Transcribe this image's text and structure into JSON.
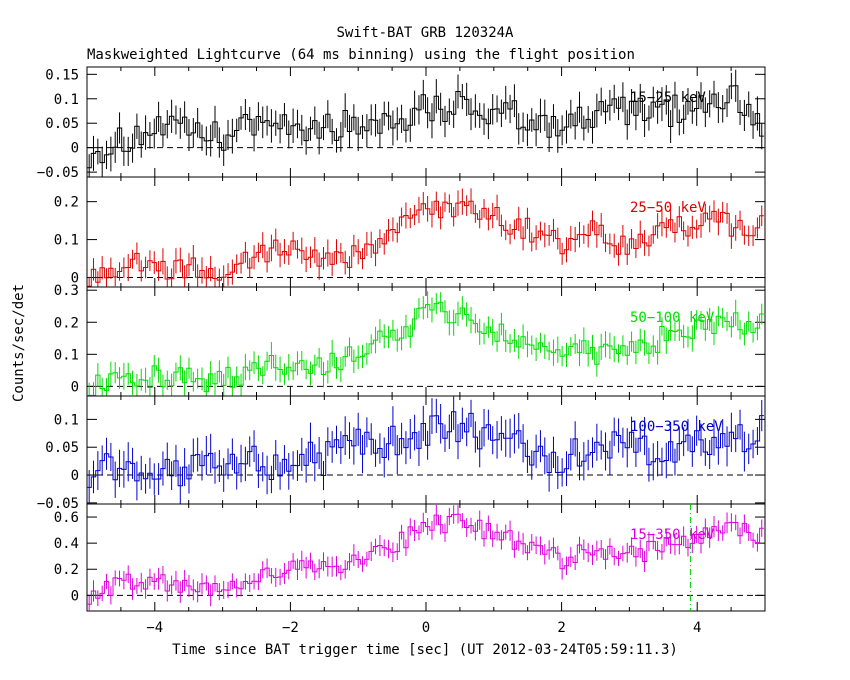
{
  "figure": {
    "title_line1": "Swift-BAT GRB 120324A",
    "title_line2": "Maskweighted Lightcurve (64 ms binning) using the flight position",
    "ylabel": "Counts/sec/det",
    "xlabel": "Time since BAT trigger time [sec] (UT 2012-03-24T05:59:11.3)"
  },
  "chart_data": [
    {
      "type": "line",
      "name": "15-25 keV",
      "label": "15−25 keV",
      "color": "#000000",
      "xlim": [
        -5,
        5
      ],
      "ylim": [
        -0.06,
        0.165
      ],
      "yticks": [
        -0.05,
        0,
        0.05,
        0.1,
        0.15
      ],
      "ytick_labels": [
        "−0.05",
        "0",
        "0.05",
        "0.1",
        "0.15"
      ],
      "x": [
        -5.0,
        -4.5,
        -4.0,
        -3.5,
        -3.0,
        -2.5,
        -2.0,
        -1.5,
        -1.0,
        -0.5,
        0.0,
        0.5,
        1.0,
        1.5,
        2.0,
        2.5,
        3.0,
        3.5,
        4.0,
        4.5,
        5.0
      ],
      "y": [
        -0.01,
        0.01,
        0.04,
        0.03,
        0.02,
        0.05,
        0.05,
        0.04,
        0.05,
        0.06,
        0.08,
        0.09,
        0.07,
        0.06,
        0.05,
        0.06,
        0.08,
        0.07,
        0.09,
        0.11,
        0.05
      ],
      "err": 0.03,
      "extra_vline": null
    },
    {
      "type": "line",
      "name": "25-50 keV",
      "label": "25−50 keV",
      "color": "#dd0000",
      "xlim": [
        -5,
        5
      ],
      "ylim": [
        -0.025,
        0.265
      ],
      "yticks": [
        0,
        0.1,
        0.2
      ],
      "ytick_labels": [
        "0",
        "0.1",
        "0.2"
      ],
      "x": [
        -5.0,
        -4.5,
        -4.0,
        -3.5,
        -3.0,
        -2.5,
        -2.0,
        -1.5,
        -1.0,
        -0.5,
        0.0,
        0.5,
        1.0,
        1.5,
        2.0,
        2.5,
        3.0,
        3.5,
        4.0,
        4.5,
        5.0
      ],
      "y": [
        0.0,
        0.04,
        0.03,
        0.02,
        0.02,
        0.06,
        0.08,
        0.06,
        0.05,
        0.13,
        0.17,
        0.19,
        0.16,
        0.13,
        0.08,
        0.12,
        0.08,
        0.12,
        0.15,
        0.14,
        0.13
      ],
      "err": 0.03,
      "extra_vline": null
    },
    {
      "type": "line",
      "name": "50-100 keV",
      "label": "50−100 keV",
      "color": "#00dd00",
      "xlim": [
        -5,
        5
      ],
      "ylim": [
        -0.03,
        0.31
      ],
      "yticks": [
        0,
        0.1,
        0.2,
        0.3
      ],
      "ytick_labels": [
        "0",
        "0.1",
        "0.2",
        "0.3"
      ],
      "x": [
        -5.0,
        -4.5,
        -4.0,
        -3.5,
        -3.0,
        -2.5,
        -2.0,
        -1.5,
        -1.0,
        -0.5,
        0.0,
        0.5,
        1.0,
        1.5,
        2.0,
        2.5,
        3.0,
        3.5,
        4.0,
        4.5,
        5.0
      ],
      "y": [
        0.0,
        0.04,
        0.03,
        0.02,
        0.02,
        0.06,
        0.08,
        0.06,
        0.1,
        0.16,
        0.22,
        0.24,
        0.17,
        0.12,
        0.12,
        0.1,
        0.11,
        0.15,
        0.17,
        0.2,
        0.19
      ],
      "err": 0.035,
      "extra_vline": null
    },
    {
      "type": "line",
      "name": "100-350 keV",
      "label": "100−350 keV",
      "color": "#0000cc",
      "xlim": [
        -5,
        5
      ],
      "ylim": [
        -0.052,
        0.142
      ],
      "yticks": [
        -0.05,
        0,
        0.05,
        0.1
      ],
      "ytick_labels": [
        "−0.05",
        "0",
        "0.05",
        "0.1"
      ],
      "x": [
        -5.0,
        -4.5,
        -4.0,
        -3.5,
        -3.0,
        -2.5,
        -2.0,
        -1.5,
        -1.0,
        -0.5,
        0.0,
        0.5,
        1.0,
        1.5,
        2.0,
        2.5,
        3.0,
        3.5,
        4.0,
        4.5,
        5.0
      ],
      "y": [
        0.01,
        0.01,
        0.01,
        0.01,
        0.01,
        0.02,
        0.02,
        0.03,
        0.05,
        0.06,
        0.07,
        0.09,
        0.07,
        0.04,
        0.03,
        0.04,
        0.05,
        0.05,
        0.06,
        0.07,
        0.08
      ],
      "err": 0.03,
      "extra_vline": null
    },
    {
      "type": "line",
      "name": "15-350 keV",
      "label": "15−350 keV",
      "color": "#dd00dd",
      "xlim": [
        -5,
        5
      ],
      "ylim": [
        -0.12,
        0.7
      ],
      "yticks": [
        0,
        0.2,
        0.4,
        0.6
      ],
      "ytick_labels": [
        "0",
        "0.2",
        "0.4",
        "0.6"
      ],
      "x": [
        -5.0,
        -4.5,
        -4.0,
        -3.5,
        -3.0,
        -2.5,
        -2.0,
        -1.5,
        -1.0,
        -0.5,
        0.0,
        0.5,
        1.0,
        1.5,
        2.0,
        2.5,
        3.0,
        3.5,
        4.0,
        4.5,
        5.0
      ],
      "y": [
        0.0,
        0.1,
        0.1,
        0.07,
        0.05,
        0.15,
        0.22,
        0.2,
        0.26,
        0.38,
        0.52,
        0.58,
        0.46,
        0.38,
        0.27,
        0.35,
        0.3,
        0.38,
        0.45,
        0.5,
        0.45
      ],
      "err": 0.07,
      "extra_vline": 3.9,
      "extra_vline_color": "#00cc00"
    }
  ],
  "x_axis": {
    "ticks": [
      -4,
      -2,
      0,
      2,
      4
    ],
    "tick_labels": [
      "−4",
      "−2",
      "0",
      "2",
      "4"
    ]
  }
}
